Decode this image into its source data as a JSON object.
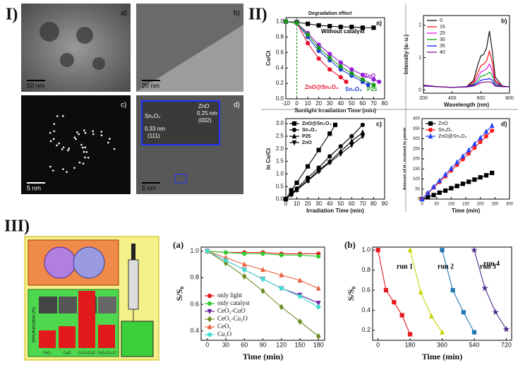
{
  "figure": {
    "section_labels": [
      "I)",
      "II)",
      "III)"
    ],
    "images": [
      {
        "panel": "a)",
        "scale": "50 nm"
      },
      {
        "panel": "b)",
        "scale": "20 nm"
      },
      {
        "panel": "c)",
        "scale": "5 nm"
      },
      {
        "panel": "d)",
        "scale": "5 nm",
        "inset": [
          "Sn₃O₄",
          "0.33 nm",
          "(111)",
          "ZnO",
          "0.25 nm",
          "(002)"
        ]
      }
    ],
    "schematic": {
      "y_label": "Desulfurization (%)",
      "bars": [
        "CeO₂",
        "CuO",
        "CeO₂/CuO",
        "CeO₂/Cu₂O"
      ]
    }
  },
  "chart_data": [
    {
      "type": "line",
      "panel": "a)",
      "annotation": "Degradation effect",
      "xlabel": "Sunlight Irradiation Time (min)",
      "ylabel": "Co/Ct",
      "xlim": [
        -10,
        80
      ],
      "xticks": [
        -10,
        0,
        10,
        20,
        30,
        40,
        50,
        60,
        70,
        80
      ],
      "ylim": [
        0,
        1.05
      ],
      "yticks": [
        {
          "value": 0,
          "label": "0.0"
        },
        0.2,
        0.4,
        0.6,
        0.8,
        {
          "value": 1,
          "label": "1.0"
        }
      ],
      "legend": "inline",
      "series": [
        {
          "name": "Without catalyst",
          "color": "#000000",
          "marker": "square",
          "x": [
            -10,
            0,
            10,
            20,
            30,
            40,
            50,
            60,
            70
          ],
          "values": [
            1.0,
            0.99,
            0.97,
            0.95,
            0.94,
            0.93,
            0.93,
            0.92,
            0.92
          ]
        },
        {
          "name": "ZnO@Sn₃O₄",
          "color": "#e8112d",
          "marker": "circle",
          "x": [
            -10,
            0,
            10,
            20,
            30,
            40,
            45
          ],
          "values": [
            1.0,
            0.98,
            0.72,
            0.52,
            0.38,
            0.28,
            0.22
          ]
        },
        {
          "name": "Sn₃O₄",
          "color": "#1f3fd6",
          "marker": "circle",
          "x": [
            -10,
            0,
            10,
            20,
            30,
            40,
            50,
            60,
            65
          ],
          "values": [
            1.0,
            0.98,
            0.8,
            0.62,
            0.5,
            0.38,
            0.3,
            0.22,
            0.18
          ]
        },
        {
          "name": "ZnO",
          "color": "#9a1fd6",
          "marker": "circle",
          "x": [
            -10,
            0,
            10,
            20,
            30,
            40,
            50,
            60,
            70,
            75
          ],
          "values": [
            1.0,
            0.98,
            0.85,
            0.7,
            0.58,
            0.47,
            0.38,
            0.31,
            0.25,
            0.22
          ]
        },
        {
          "name": "P25",
          "color": "#1a9a1a",
          "marker": "circle",
          "x": [
            -10,
            0,
            10,
            20,
            30,
            40,
            50,
            60,
            70
          ],
          "values": [
            1.0,
            0.98,
            0.83,
            0.66,
            0.53,
            0.42,
            0.33,
            0.25,
            0.18
          ]
        }
      ]
    },
    {
      "type": "line",
      "panel": "b)",
      "xlabel": "Wavelength (nm)",
      "ylabel": "Intensity (a. u.)",
      "xlim": [
        200,
        800
      ],
      "xticks": [
        200,
        400,
        600,
        800
      ],
      "ylim": [
        -0.1,
        2.3
      ],
      "yticks": [
        0,
        1,
        2
      ],
      "legend": "upper left",
      "x": [
        200,
        300,
        400,
        500,
        550,
        580,
        600,
        620,
        640,
        660,
        680,
        700,
        750,
        800
      ],
      "series": [
        {
          "name": "0",
          "color": "#000000",
          "marker": "none",
          "values": [
            0.15,
            0.1,
            0.08,
            0.1,
            0.3,
            0.8,
            1.05,
            1.1,
            1.3,
            1.82,
            1.2,
            0.4,
            0.12,
            0.1
          ]
        },
        {
          "name": "15",
          "color": "#ff0000",
          "marker": "none",
          "values": [
            0.15,
            0.1,
            0.08,
            0.1,
            0.25,
            0.55,
            0.75,
            0.8,
            0.9,
            1.2,
            0.85,
            0.3,
            0.1,
            0.1
          ]
        },
        {
          "name": "25",
          "color": "#e000e0",
          "marker": "none",
          "values": [
            0.15,
            0.1,
            0.08,
            0.1,
            0.2,
            0.4,
            0.55,
            0.6,
            0.65,
            0.8,
            0.6,
            0.25,
            0.1,
            0.1
          ]
        },
        {
          "name": "30",
          "color": "#00a000",
          "marker": "none",
          "values": [
            0.14,
            0.1,
            0.08,
            0.1,
            0.18,
            0.3,
            0.42,
            0.45,
            0.48,
            0.55,
            0.45,
            0.2,
            0.1,
            0.1
          ]
        },
        {
          "name": "35",
          "color": "#0000ff",
          "marker": "none",
          "values": [
            0.13,
            0.1,
            0.08,
            0.1,
            0.15,
            0.22,
            0.3,
            0.32,
            0.33,
            0.35,
            0.3,
            0.15,
            0.1,
            0.1
          ]
        },
        {
          "name": "40",
          "color": "#800080",
          "marker": "none",
          "values": [
            0.12,
            0.1,
            0.08,
            0.09,
            0.12,
            0.18,
            0.22,
            0.24,
            0.25,
            0.25,
            0.22,
            0.12,
            0.1,
            0.1
          ]
        }
      ]
    },
    {
      "type": "line",
      "panel": "c)",
      "xlabel": "Irradiation Time (min)",
      "ylabel": "ln Co/Ct",
      "xlim": [
        0,
        90
      ],
      "xticks": [
        0,
        10,
        20,
        30,
        40,
        50,
        60,
        70,
        80,
        90
      ],
      "ylim": [
        0,
        3.2
      ],
      "yticks": [
        {
          "value": 0,
          "label": "0.0"
        },
        0.5,
        {
          "value": 1,
          "label": "1.0"
        },
        1.5,
        {
          "value": 2,
          "label": "2.0"
        },
        2.5,
        {
          "value": 3,
          "label": "3.0"
        }
      ],
      "legend": "upper left",
      "series": [
        {
          "name": "ZnO@Sn₃O₄",
          "color": "#000000",
          "marker": "square",
          "x": [
            0,
            5,
            10,
            20,
            30,
            40,
            45
          ],
          "values": [
            0,
            0.35,
            0.65,
            1.3,
            1.95,
            2.6,
            2.95
          ]
        },
        {
          "name": "Sn₃O₄",
          "color": "#000000",
          "marker": "circle",
          "x": [
            0,
            5,
            10,
            20,
            30,
            40,
            50,
            60,
            70
          ],
          "values": [
            0,
            0.2,
            0.42,
            0.85,
            1.25,
            1.7,
            2.1,
            2.5,
            2.95
          ]
        },
        {
          "name": "P25",
          "color": "#000000",
          "marker": "triangle",
          "x": [
            0,
            5,
            10,
            20,
            30,
            40,
            50,
            60,
            70
          ],
          "values": [
            0,
            0.2,
            0.38,
            0.75,
            1.15,
            1.5,
            1.9,
            2.3,
            2.65
          ]
        },
        {
          "name": "ZnO",
          "color": "#000000",
          "marker": "triangle-down",
          "x": [
            0,
            5,
            10,
            20,
            30,
            40,
            50,
            60,
            70
          ],
          "values": [
            0,
            0.17,
            0.36,
            0.72,
            1.1,
            1.45,
            1.8,
            2.15,
            2.5
          ]
        }
      ]
    },
    {
      "type": "line",
      "panel": "d)",
      "xlabel": "Time (min)",
      "ylabel": "Amount of H₂ evolved in μmole",
      "xlim": [
        0,
        300
      ],
      "xticks": [
        0,
        50,
        100,
        150,
        200,
        250,
        300
      ],
      "ylim": [
        0,
        400
      ],
      "yticks": [
        0,
        50,
        100,
        150,
        200,
        250,
        300,
        350,
        400
      ],
      "legend": "upper left",
      "x": [
        0,
        20,
        40,
        60,
        80,
        100,
        120,
        140,
        160,
        180,
        200,
        220,
        240
      ],
      "series": [
        {
          "name": "ZnO",
          "color": "#000000",
          "marker": "square",
          "values": [
            0,
            10,
            20,
            32,
            42,
            54,
            65,
            76,
            86,
            97,
            108,
            118,
            130
          ]
        },
        {
          "name": "Sn₃O₄",
          "color": "#ff2020",
          "marker": "circle",
          "values": [
            0,
            28,
            57,
            85,
            113,
            142,
            170,
            198,
            227,
            255,
            284,
            312,
            340
          ]
        },
        {
          "name": "ZnO@Sn₃O₄",
          "color": "#2040ff",
          "marker": "triangle",
          "values": [
            0,
            30,
            61,
            91,
            122,
            152,
            183,
            213,
            243,
            274,
            304,
            335,
            365
          ]
        }
      ]
    },
    {
      "type": "line",
      "panel": "(a)",
      "xlabel": "Time (min)",
      "ylabel": "S/S₀",
      "xlim": [
        -10,
        190
      ],
      "xticks": [
        0,
        30,
        60,
        90,
        120,
        150,
        180
      ],
      "ylim": [
        0.33,
        1.03
      ],
      "yticks": [
        0.4,
        0.6,
        0.8,
        {
          "value": 1,
          "label": "1.0"
        }
      ],
      "legend": "lower left",
      "x": [
        0,
        30,
        60,
        90,
        120,
        150,
        180
      ],
      "series": [
        {
          "name": "only light",
          "color": "#e31a1c",
          "marker": "circle",
          "values": [
            1.0,
            0.99,
            0.99,
            0.99,
            0.98,
            0.98,
            0.98
          ]
        },
        {
          "name": "only catalyst",
          "color": "#33cc33",
          "marker": "circle",
          "values": [
            1.0,
            0.99,
            0.98,
            0.98,
            0.97,
            0.97,
            0.96
          ]
        },
        {
          "name": "CeO₂-CuO",
          "color": "#6a1fa0",
          "marker": "triangle-down",
          "values": [
            1.0,
            0.93,
            0.86,
            0.79,
            0.72,
            0.67,
            0.61
          ]
        },
        {
          "name": "CeO₂-Cu₂O",
          "color": "#6b8e23",
          "marker": "diamond",
          "values": [
            1.0,
            0.91,
            0.81,
            0.7,
            0.58,
            0.47,
            0.36
          ]
        },
        {
          "name": "CeO₂",
          "color": "#e8603c",
          "marker": "triangle",
          "values": [
            1.0,
            0.95,
            0.9,
            0.86,
            0.82,
            0.78,
            0.72
          ]
        },
        {
          "name": "Cu₂O",
          "color": "#40e0d0",
          "marker": "circle",
          "values": [
            1.0,
            0.93,
            0.86,
            0.79,
            0.72,
            0.66,
            0.58
          ]
        }
      ]
    },
    {
      "type": "line",
      "panel": "(b)",
      "xlabel": "Time (min)",
      "ylabel": "S/S₀",
      "xlim": [
        -30,
        750
      ],
      "xticks": [
        0,
        180,
        360,
        540,
        720
      ],
      "ylim": [
        0.1,
        1.03
      ],
      "yticks": [
        0.2,
        0.4,
        0.6,
        0.8,
        {
          "value": 1,
          "label": "1.0"
        }
      ],
      "legend": "inline",
      "series": [
        {
          "name": "run 1",
          "color": "#e31a1c",
          "marker": "square",
          "x": [
            0,
            45,
            90,
            135,
            180
          ],
          "values": [
            1.0,
            0.6,
            0.48,
            0.35,
            0.16
          ]
        },
        {
          "name": "run 2",
          "color": "#c8d400",
          "marker": "triangle",
          "x": [
            180,
            240,
            300,
            360
          ],
          "values": [
            1.0,
            0.58,
            0.34,
            0.18
          ]
        },
        {
          "name": "run 3",
          "color": "#1f77b4",
          "marker": "square",
          "x": [
            360,
            420,
            480,
            540
          ],
          "values": [
            1.0,
            0.6,
            0.38,
            0.18
          ]
        },
        {
          "name": "run 4",
          "color": "#4b2a8f",
          "marker": "star",
          "x": [
            540,
            600,
            660,
            720
          ],
          "values": [
            1.0,
            0.62,
            0.38,
            0.21
          ]
        }
      ]
    }
  ]
}
